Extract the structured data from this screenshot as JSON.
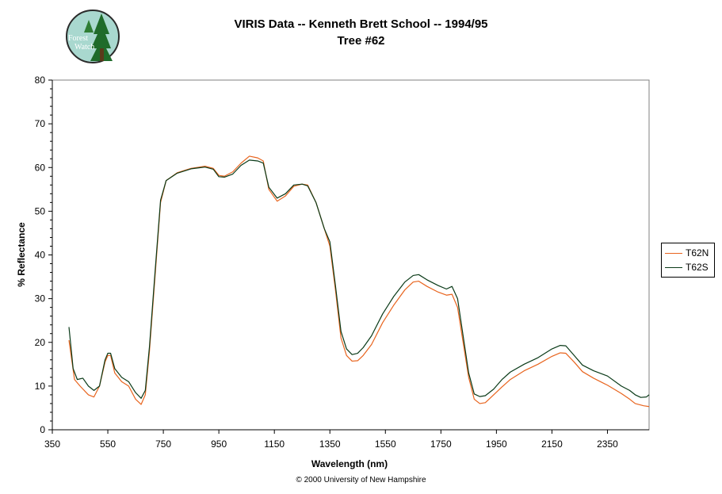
{
  "header": {
    "title": "VIRIS Data -- Kenneth Brett School -- 1994/95",
    "subtitle": "Tree #62"
  },
  "logo": {
    "text_top": "Forest",
    "text_bottom": "Watch"
  },
  "footer": {
    "copyright": "© 2000 University of New Hampshire"
  },
  "colors": {
    "T62N": "#E8641E",
    "T62S": "#0A3A18"
  },
  "chart_data": {
    "type": "line",
    "title": "VIRIS Data -- Kenneth Brett School -- 1994/95",
    "subtitle": "Tree #62",
    "xlabel": "Wavelength (nm)",
    "ylabel": "% Reflectance",
    "xlim": [
      350,
      2500
    ],
    "ylim": [
      0,
      80
    ],
    "x_ticks": [
      350,
      550,
      750,
      950,
      1150,
      1350,
      1550,
      1750,
      1950,
      2150,
      2350
    ],
    "y_ticks": [
      0,
      10,
      20,
      30,
      40,
      50,
      60,
      70,
      80
    ],
    "grid": false,
    "legend": "right",
    "series": [
      {
        "name": "T62N",
        "points": [
          [
            410,
            20.5
          ],
          [
            430,
            11.5
          ],
          [
            450,
            10
          ],
          [
            480,
            8
          ],
          [
            500,
            7.5
          ],
          [
            520,
            10
          ],
          [
            540,
            15.5
          ],
          [
            550,
            17
          ],
          [
            560,
            17
          ],
          [
            575,
            13
          ],
          [
            600,
            11
          ],
          [
            625,
            10
          ],
          [
            650,
            7
          ],
          [
            670,
            5.8
          ],
          [
            685,
            8
          ],
          [
            700,
            18
          ],
          [
            720,
            35
          ],
          [
            740,
            52
          ],
          [
            760,
            57
          ],
          [
            800,
            58.8
          ],
          [
            850,
            59.8
          ],
          [
            900,
            60.3
          ],
          [
            930,
            59.8
          ],
          [
            950,
            58.2
          ],
          [
            970,
            58
          ],
          [
            1000,
            59
          ],
          [
            1030,
            61
          ],
          [
            1060,
            62.6
          ],
          [
            1090,
            62.2
          ],
          [
            1110,
            61.5
          ],
          [
            1130,
            55
          ],
          [
            1160,
            52.3
          ],
          [
            1190,
            53.5
          ],
          [
            1220,
            55.7
          ],
          [
            1250,
            56.2
          ],
          [
            1270,
            56
          ],
          [
            1300,
            52
          ],
          [
            1330,
            46
          ],
          [
            1350,
            42
          ],
          [
            1370,
            32
          ],
          [
            1390,
            21
          ],
          [
            1410,
            17
          ],
          [
            1430,
            15.7
          ],
          [
            1450,
            15.8
          ],
          [
            1470,
            17
          ],
          [
            1500,
            19.5
          ],
          [
            1540,
            24.5
          ],
          [
            1580,
            28.5
          ],
          [
            1620,
            32
          ],
          [
            1650,
            33.8
          ],
          [
            1670,
            34
          ],
          [
            1700,
            32.8
          ],
          [
            1740,
            31.5
          ],
          [
            1770,
            30.8
          ],
          [
            1790,
            31
          ],
          [
            1810,
            28
          ],
          [
            1830,
            20
          ],
          [
            1850,
            12
          ],
          [
            1870,
            7
          ],
          [
            1890,
            6
          ],
          [
            1910,
            6.2
          ],
          [
            1940,
            8
          ],
          [
            1970,
            9.8
          ],
          [
            2000,
            11.5
          ],
          [
            2050,
            13.5
          ],
          [
            2100,
            15
          ],
          [
            2150,
            16.8
          ],
          [
            2180,
            17.6
          ],
          [
            2200,
            17.5
          ],
          [
            2230,
            15.5
          ],
          [
            2260,
            13.3
          ],
          [
            2300,
            11.8
          ],
          [
            2350,
            10.2
          ],
          [
            2400,
            8.3
          ],
          [
            2430,
            7
          ],
          [
            2450,
            6
          ],
          [
            2480,
            5.5
          ],
          [
            2500,
            5.3
          ]
        ]
      },
      {
        "name": "T62S",
        "points": [
          [
            410,
            23.5
          ],
          [
            425,
            14
          ],
          [
            440,
            11.5
          ],
          [
            460,
            11.8
          ],
          [
            480,
            10
          ],
          [
            500,
            9
          ],
          [
            520,
            10
          ],
          [
            540,
            16
          ],
          [
            550,
            17.5
          ],
          [
            560,
            17.5
          ],
          [
            575,
            14
          ],
          [
            600,
            12
          ],
          [
            625,
            11
          ],
          [
            650,
            8.5
          ],
          [
            670,
            7.2
          ],
          [
            685,
            9
          ],
          [
            700,
            19
          ],
          [
            720,
            36
          ],
          [
            740,
            52.5
          ],
          [
            760,
            57
          ],
          [
            800,
            58.7
          ],
          [
            850,
            59.7
          ],
          [
            900,
            60.1
          ],
          [
            930,
            59.6
          ],
          [
            950,
            57.9
          ],
          [
            970,
            57.8
          ],
          [
            1000,
            58.5
          ],
          [
            1030,
            60.5
          ],
          [
            1060,
            61.7
          ],
          [
            1090,
            61.5
          ],
          [
            1110,
            61
          ],
          [
            1130,
            55.5
          ],
          [
            1160,
            53
          ],
          [
            1190,
            54
          ],
          [
            1220,
            56
          ],
          [
            1250,
            56.2
          ],
          [
            1270,
            55.8
          ],
          [
            1300,
            52
          ],
          [
            1330,
            46
          ],
          [
            1350,
            43
          ],
          [
            1370,
            33
          ],
          [
            1390,
            22.5
          ],
          [
            1410,
            18.5
          ],
          [
            1430,
            17.2
          ],
          [
            1450,
            17.5
          ],
          [
            1470,
            18.8
          ],
          [
            1500,
            21.5
          ],
          [
            1540,
            26.5
          ],
          [
            1580,
            30.5
          ],
          [
            1620,
            33.8
          ],
          [
            1650,
            35.3
          ],
          [
            1670,
            35.5
          ],
          [
            1700,
            34.3
          ],
          [
            1740,
            33
          ],
          [
            1770,
            32.2
          ],
          [
            1790,
            32.8
          ],
          [
            1810,
            30
          ],
          [
            1830,
            21.5
          ],
          [
            1850,
            13
          ],
          [
            1870,
            8.2
          ],
          [
            1890,
            7.6
          ],
          [
            1910,
            7.8
          ],
          [
            1940,
            9.3
          ],
          [
            1970,
            11.5
          ],
          [
            2000,
            13.2
          ],
          [
            2050,
            15
          ],
          [
            2100,
            16.5
          ],
          [
            2150,
            18.5
          ],
          [
            2180,
            19.3
          ],
          [
            2200,
            19.2
          ],
          [
            2230,
            17
          ],
          [
            2260,
            14.8
          ],
          [
            2300,
            13.5
          ],
          [
            2350,
            12.3
          ],
          [
            2400,
            10
          ],
          [
            2430,
            9
          ],
          [
            2450,
            8
          ],
          [
            2470,
            7.4
          ],
          [
            2490,
            7.5
          ],
          [
            2500,
            8
          ]
        ]
      }
    ]
  }
}
